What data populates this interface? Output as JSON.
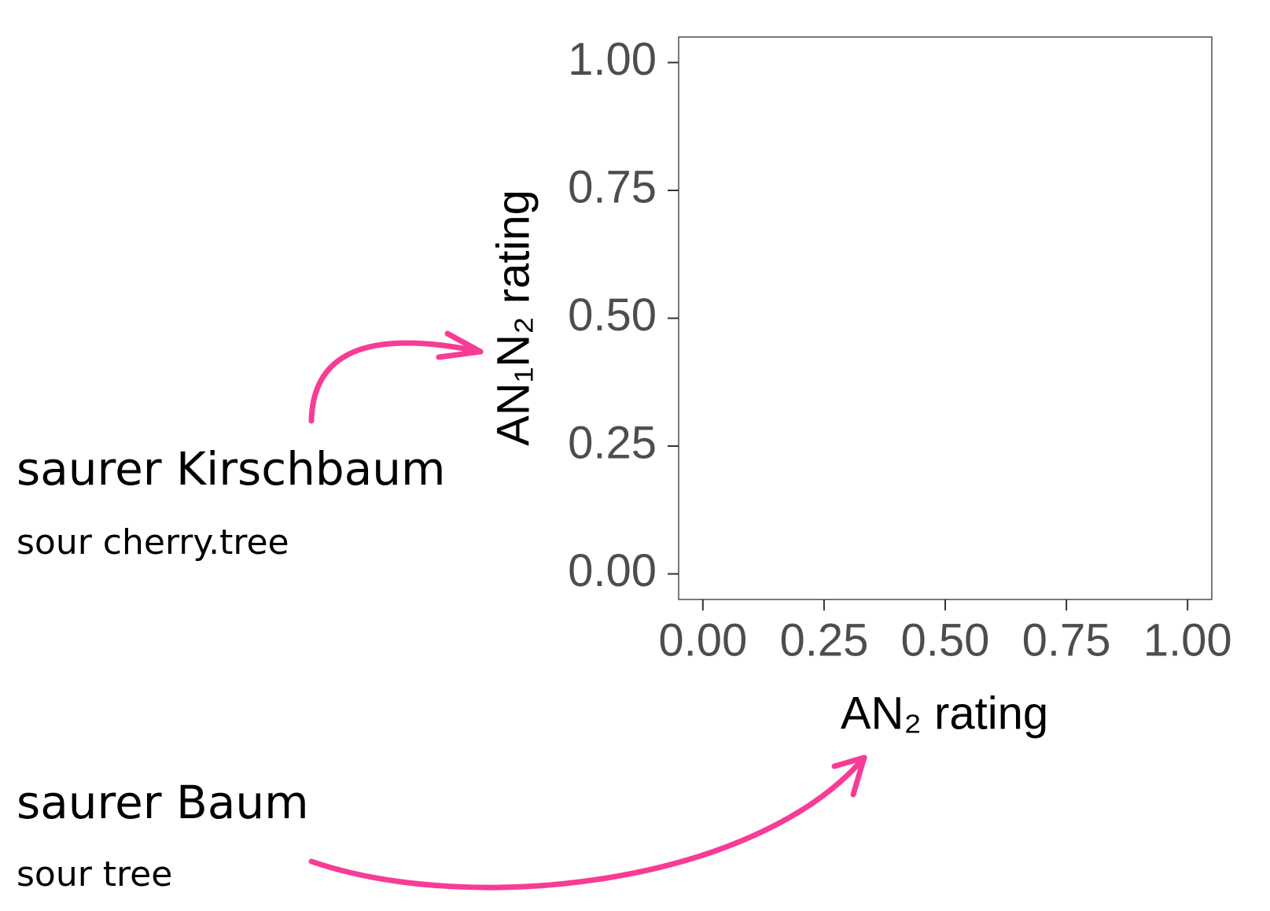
{
  "chart_data": {
    "type": "scatter",
    "x_label": "AN₂ rating",
    "y_label": "AN₁N₂ rating",
    "xlim": [
      -0.05,
      1.05
    ],
    "ylim": [
      -0.05,
      1.05
    ],
    "xticks": [
      {
        "value": 0,
        "label": "0.00"
      },
      {
        "value": 0.25,
        "label": "0.25"
      },
      {
        "value": 0.5,
        "label": "0.50"
      },
      {
        "value": 0.75,
        "label": "0.75"
      },
      {
        "value": 1,
        "label": "1.00"
      }
    ],
    "yticks": [
      {
        "value": 0,
        "label": "0.00"
      },
      {
        "value": 0.25,
        "label": "0.25"
      },
      {
        "value": 0.5,
        "label": "0.50"
      },
      {
        "value": 0.75,
        "label": "0.75"
      },
      {
        "value": 1,
        "label": "1.00"
      }
    ],
    "annotations": [
      {
        "text": "saurer Kirschbaum",
        "gloss": "sour cherry.tree"
      },
      {
        "text": "saurer Baum",
        "gloss": "sour tree"
      }
    ],
    "annotation_color": "#f73c96"
  }
}
